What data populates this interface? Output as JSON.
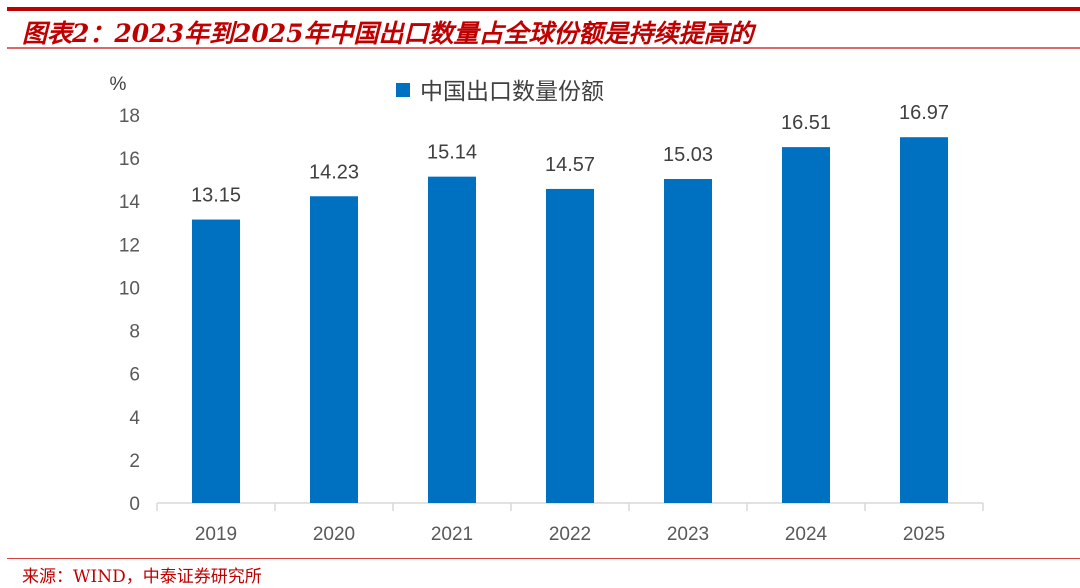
{
  "title": "图表2：2023年到2025年中国出口数量占全球份额是持续提高的",
  "source": "来源：WIND，中泰证券研究所",
  "colors": {
    "bar": "#0070c0",
    "title": "#c00000",
    "axis_text": "#595959",
    "axis_line": "#d9d9d9"
  },
  "chart_data": {
    "type": "bar",
    "title": "",
    "ylabel": "%",
    "xlabel": "",
    "categories": [
      "2019",
      "2020",
      "2021",
      "2022",
      "2023",
      "2024",
      "2025"
    ],
    "series": [
      {
        "name": "中国出口数量份额",
        "values": [
          13.15,
          14.23,
          15.14,
          14.57,
          15.03,
          16.51,
          16.97
        ]
      }
    ],
    "data_labels": [
      "13.15",
      "14.23",
      "15.14",
      "14.57",
      "15.03",
      "16.51",
      "16.97"
    ],
    "ylim": [
      0,
      18
    ],
    "yticks": [
      0,
      2,
      4,
      6,
      8,
      10,
      12,
      14,
      16,
      18
    ],
    "grid": false,
    "legend": "top"
  }
}
